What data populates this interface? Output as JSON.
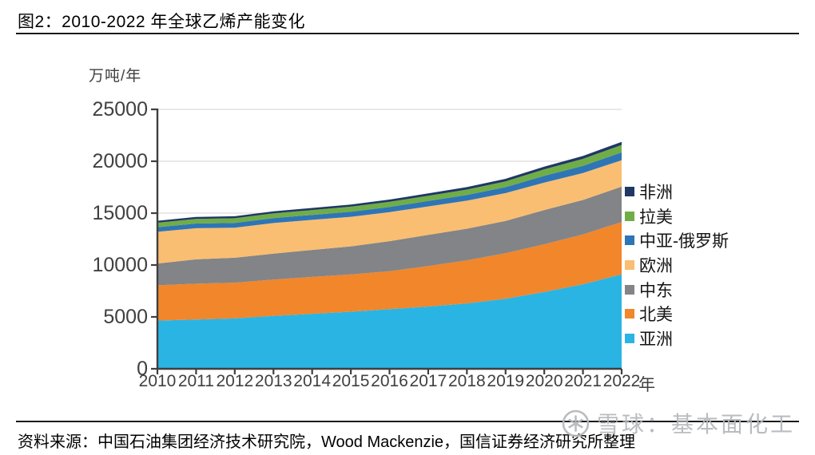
{
  "header": {
    "title": "图2：2010-2022 年全球乙烯产能变化"
  },
  "chart_data": {
    "type": "area",
    "stacked": true,
    "title": "图2：2010-2022 年全球乙烯产能变化",
    "ylabel": "万吨/年",
    "xlabel_suffix": "年",
    "ylim": [
      0,
      25000
    ],
    "ytick_step": 5000,
    "grid": true,
    "legend_position": "right",
    "categories": [
      "2010",
      "2011",
      "2012",
      "2013",
      "2014",
      "2015",
      "2016",
      "2017",
      "2018",
      "2019",
      "2020",
      "2021",
      "2022"
    ],
    "series": [
      {
        "key": "asia",
        "name": "亚洲",
        "color": "#2AB4E4",
        "values": [
          4650,
          4750,
          4850,
          5100,
          5300,
          5500,
          5750,
          6000,
          6300,
          6750,
          7400,
          8150,
          9100
        ]
      },
      {
        "key": "north-america",
        "name": "北美",
        "color": "#F1862B",
        "values": [
          3400,
          3450,
          3450,
          3500,
          3550,
          3600,
          3650,
          3900,
          4150,
          4400,
          4600,
          4800,
          5050
        ]
      },
      {
        "key": "middle-east",
        "name": "中东",
        "color": "#828487",
        "values": [
          2100,
          2350,
          2400,
          2500,
          2600,
          2700,
          2900,
          3000,
          3050,
          3100,
          3300,
          3320,
          3400
        ]
      },
      {
        "key": "europe",
        "name": "欧洲",
        "color": "#F9BE72",
        "values": [
          3050,
          3000,
          2900,
          2950,
          2900,
          2850,
          2800,
          2750,
          2700,
          2680,
          2650,
          2600,
          2550
        ]
      },
      {
        "key": "central-asia-russia",
        "name": "中亚-俄罗斯",
        "color": "#2E75B6",
        "values": [
          450,
          450,
          460,
          470,
          480,
          490,
          500,
          520,
          550,
          580,
          650,
          690,
          750
        ]
      },
      {
        "key": "latin-america",
        "name": "拉美",
        "color": "#70AD47",
        "values": [
          430,
          440,
          450,
          460,
          470,
          480,
          490,
          500,
          520,
          550,
          620,
          670,
          720
        ]
      },
      {
        "key": "africa",
        "name": "非洲",
        "color": "#1F3864",
        "values": [
          180,
          190,
          190,
          200,
          200,
          210,
          220,
          230,
          240,
          250,
          260,
          280,
          300
        ]
      }
    ]
  },
  "footer": {
    "source": "资料来源：中国石油集团经济技术研究院，Wood Mackenzie，国信证券经济研究所整理"
  },
  "watermark": {
    "text": "雪球：基本面化工"
  },
  "colors": {
    "axis": "#3F3F3F",
    "grid": "#D9D9D9",
    "tick_text": "#404040",
    "watermark": "#B4B7BB"
  }
}
